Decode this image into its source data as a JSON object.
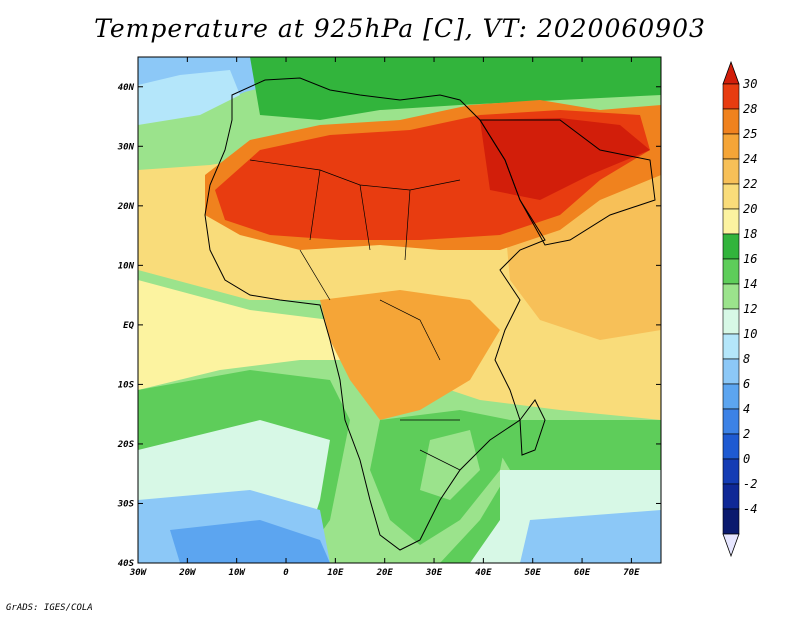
{
  "title": "Temperature at 925hPa [C], VT: 2020060903",
  "credit": "GrADS: IGES/COLA",
  "map": {
    "projection": "lat-lon",
    "lon_range": [
      -30,
      76
    ],
    "lat_range": [
      -40,
      45
    ],
    "lon_ticks": [
      {
        "value": -30,
        "label": "30W"
      },
      {
        "value": -20,
        "label": "20W"
      },
      {
        "value": -10,
        "label": "10W"
      },
      {
        "value": 0,
        "label": "0"
      },
      {
        "value": 10,
        "label": "10E"
      },
      {
        "value": 20,
        "label": "20E"
      },
      {
        "value": 30,
        "label": "30E"
      },
      {
        "value": 40,
        "label": "40E"
      },
      {
        "value": 50,
        "label": "50E"
      },
      {
        "value": 60,
        "label": "60E"
      },
      {
        "value": 70,
        "label": "70E"
      }
    ],
    "lat_ticks": [
      {
        "value": 40,
        "label": "40N"
      },
      {
        "value": 30,
        "label": "30N"
      },
      {
        "value": 20,
        "label": "20N"
      },
      {
        "value": 10,
        "label": "10N"
      },
      {
        "value": 0,
        "label": "EQ"
      },
      {
        "value": -10,
        "label": "10S"
      },
      {
        "value": -20,
        "label": "20S"
      },
      {
        "value": -30,
        "label": "30S"
      },
      {
        "value": -40,
        "label": "40S"
      }
    ]
  },
  "colorbar": {
    "levels": [
      "30",
      "28",
      "25",
      "24",
      "22",
      "20",
      "18",
      "16",
      "14",
      "12",
      "10",
      "8",
      "6",
      "4",
      "2",
      "0",
      "-2",
      "-4"
    ],
    "colors": [
      "#e83c10",
      "#f0821e",
      "#f5a537",
      "#f7c058",
      "#f9dc7a",
      "#fcf3a0",
      "#32b43c",
      "#5ecd5a",
      "#9be38c",
      "#d7f8e6",
      "#b4e6fa",
      "#8cc8f7",
      "#5ca5f0",
      "#3c82e6",
      "#1e5ad2",
      "#143cb4",
      "#0f2896",
      "#0a1a6e"
    ],
    "top_color": "#d21e0a",
    "bottom_color": "#e6e6ff"
  }
}
